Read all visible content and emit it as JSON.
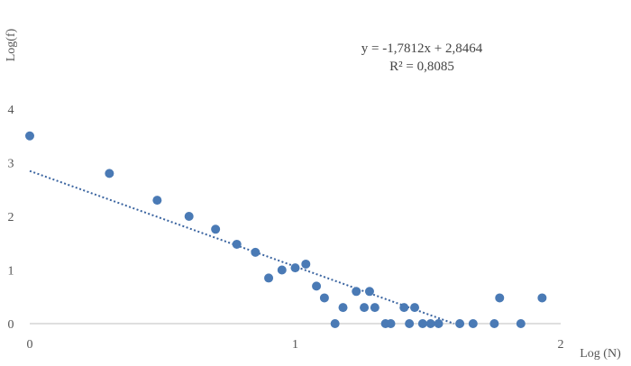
{
  "chart_data": {
    "type": "scatter",
    "ylabel": "Log(f)",
    "xlabel": "Log (N)",
    "xlim": [
      0,
      2
    ],
    "ylim": [
      0,
      4
    ],
    "x_ticks": [
      "0",
      "1",
      "2"
    ],
    "y_ticks": [
      "0",
      "1",
      "2",
      "3",
      "4"
    ],
    "grid": false,
    "point_color": "#4a7ab5",
    "trendline": {
      "type": "linear",
      "style": "dotted",
      "color": "#3a64a0",
      "slope": -1.7812,
      "intercept": 2.8464,
      "equation": "y = -1,7812x + 2,8464",
      "r2_label": "R² = 0,8085"
    },
    "points": [
      [
        0,
        3.5
      ],
      [
        0.3,
        2.8
      ],
      [
        0.48,
        2.3
      ],
      [
        0.6,
        2.0
      ],
      [
        0.7,
        1.76
      ],
      [
        0.78,
        1.48
      ],
      [
        0.85,
        1.33
      ],
      [
        0.9,
        0.85
      ],
      [
        0.95,
        1.0
      ],
      [
        1.0,
        1.04
      ],
      [
        1.04,
        1.11
      ],
      [
        1.08,
        0.7
      ],
      [
        1.11,
        0.48
      ],
      [
        1.15,
        0.0
      ],
      [
        1.18,
        0.3
      ],
      [
        1.23,
        0.6
      ],
      [
        1.26,
        0.3
      ],
      [
        1.28,
        0.6
      ],
      [
        1.3,
        0.3
      ],
      [
        1.34,
        0.0
      ],
      [
        1.36,
        0.0
      ],
      [
        1.41,
        0.3
      ],
      [
        1.43,
        0.0
      ],
      [
        1.45,
        0.3
      ],
      [
        1.48,
        0.0
      ],
      [
        1.51,
        0.0
      ],
      [
        1.54,
        0.0
      ],
      [
        1.62,
        0.0
      ],
      [
        1.67,
        0.0
      ],
      [
        1.75,
        0.0
      ],
      [
        1.77,
        0.48
      ],
      [
        1.85,
        0.0
      ],
      [
        1.93,
        0.48
      ]
    ]
  }
}
